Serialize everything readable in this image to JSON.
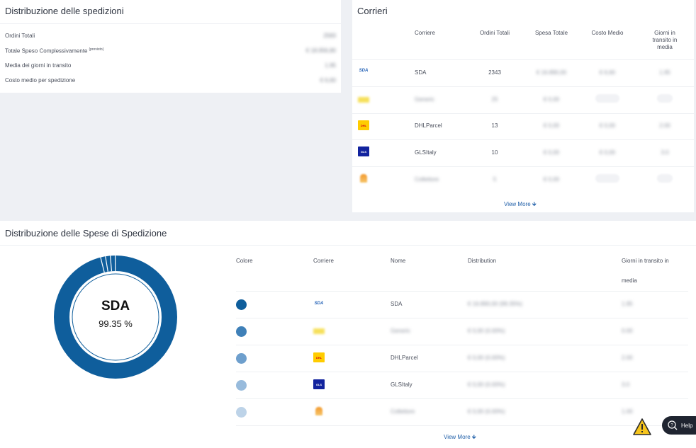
{
  "distribuzione": {
    "title": "Distribuzione delle spedizioni",
    "rows": [
      {
        "label": "Ordini Totali",
        "sup": "",
        "value": "2583"
      },
      {
        "label": "Totale Speso Complessivamente",
        "sup": "(previsto)",
        "value": "€ 18.956,80"
      },
      {
        "label": "Media dei giorni in transito",
        "sup": "",
        "value": "1.95"
      },
      {
        "label": "Costo medio per spedizione",
        "sup": "",
        "value": "€ 6,60"
      }
    ]
  },
  "corrieri": {
    "title": "Corrieri",
    "headers": {
      "corriere": "Corriere",
      "ordini": "Ordini Totali",
      "spesa": "Spesa Totale",
      "costo": "Costo Medio",
      "giorni": "Giorni in transito in media"
    },
    "rows": [
      {
        "logo": "sda-logo",
        "name": "SDA",
        "ordini": "2343",
        "spesa": "€ 16.890,00",
        "costo": "€ 6,60",
        "giorni": "1.95"
      },
      {
        "logo": "yellow-courier-logo",
        "name": "Generic",
        "ordini": "25",
        "spesa": "€ 0,00",
        "costo": "",
        "giorni": ""
      },
      {
        "logo": "dhl-logo",
        "name": "DHLParcel",
        "ordini": "13",
        "spesa": "€ 0,00",
        "costo": "€ 0,00",
        "giorni": "2.00"
      },
      {
        "logo": "gls-logo",
        "name": "GLSItaly",
        "ordini": "10",
        "spesa": "€ 0,00",
        "costo": "€ 0,00",
        "giorni": "3.0"
      },
      {
        "logo": "other-courier-logo",
        "name": "Collettore",
        "ordini": "5",
        "spesa": "€ 0,00",
        "costo": "",
        "giorni": ""
      }
    ],
    "view_more": "View More 🡻"
  },
  "spese": {
    "title": "Distribuzione delle Spese di Spedizione",
    "donut": {
      "name": "SDA",
      "pct": "99.35 %",
      "share": 0.9935
    },
    "headers": {
      "colore": "Colore",
      "corriere": "Corriere",
      "nome": "Nome",
      "distribution": "Distribution",
      "giorni": "Giorni in transito in",
      "giorni2": "media"
    },
    "rows": [
      {
        "color": "#0f5e9c",
        "logo": "sda-logo",
        "nome": "SDA",
        "distribution": "€ 16.890,00 (99.35%)",
        "giorni": "1.95"
      },
      {
        "color": "#3f80b8",
        "logo": "yellow-courier-logo",
        "nome": "Generic",
        "distribution": "€ 0,00 (0.00%)",
        "giorni": "0.00"
      },
      {
        "color": "#6e9fcd",
        "logo": "dhl-logo",
        "nome": "DHLParcel",
        "distribution": "€ 0,00 (0.00%)",
        "giorni": "2.00"
      },
      {
        "color": "#98bbdc",
        "logo": "gls-logo",
        "nome": "GLSItaly",
        "distribution": "€ 0,00 (0.00%)",
        "giorni": "3.0"
      },
      {
        "color": "#bdd3e8",
        "logo": "other-courier-logo",
        "nome": "Collettore",
        "distribution": "€ 0,00 (0.00%)",
        "giorni": "1.00"
      }
    ],
    "view_more": "View More 🡻"
  },
  "help": {
    "label": "Help"
  }
}
